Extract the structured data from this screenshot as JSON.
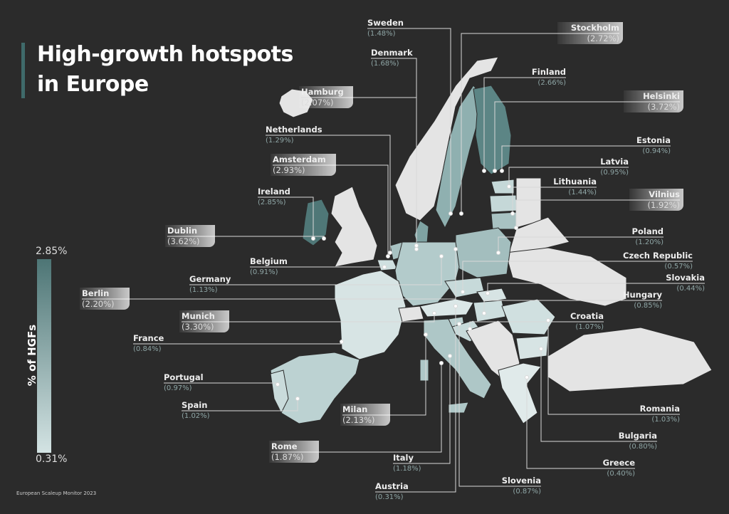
{
  "title_line1": "High-growth hotspots",
  "title_line2": "in Europe",
  "legend": {
    "title": "% of HGFs",
    "max": "2.85%",
    "min": "0.31%",
    "color_max": "#4d7575",
    "color_min": "#d3e3e3"
  },
  "source": "European Scaleup Monitor 2023",
  "labels": [
    {
      "name": "Sweden",
      "value": "(1.48%)",
      "kind": "country"
    },
    {
      "name": "Denmark",
      "value": "(1.68%)",
      "kind": "country"
    },
    {
      "name": "Hamburg",
      "value": "(2.07%)",
      "kind": "city"
    },
    {
      "name": "Netherlands",
      "value": "(1.29%)",
      "kind": "country"
    },
    {
      "name": "Amsterdam",
      "value": "(2.93%)",
      "kind": "city"
    },
    {
      "name": "Ireland",
      "value": "(2.85%)",
      "kind": "country"
    },
    {
      "name": "Dublin",
      "value": "(3.62%)",
      "kind": "city"
    },
    {
      "name": "Belgium",
      "value": "(0.91%)",
      "kind": "country"
    },
    {
      "name": "Germany",
      "value": "(1.13%)",
      "kind": "country"
    },
    {
      "name": "Berlin",
      "value": "(2.20%)",
      "kind": "city"
    },
    {
      "name": "Munich",
      "value": "(3.30%)",
      "kind": "city"
    },
    {
      "name": "France",
      "value": "(0.84%)",
      "kind": "country"
    },
    {
      "name": "Portugal",
      "value": "(0.97%)",
      "kind": "country"
    },
    {
      "name": "Spain",
      "value": "(1.02%)",
      "kind": "country"
    },
    {
      "name": "Milan",
      "value": "(2.13%)",
      "kind": "city"
    },
    {
      "name": "Rome",
      "value": "(1.87%)",
      "kind": "city"
    },
    {
      "name": "Italy",
      "value": "(1.18%)",
      "kind": "country"
    },
    {
      "name": "Austria",
      "value": "(0.31%)",
      "kind": "country"
    },
    {
      "name": "Slovenia",
      "value": "(0.87%)",
      "kind": "country"
    },
    {
      "name": "Stockholm",
      "value": "(2.72%)",
      "kind": "city"
    },
    {
      "name": "Finland",
      "value": "(2.66%)",
      "kind": "country"
    },
    {
      "name": "Helsinki",
      "value": "(3.72%)",
      "kind": "city"
    },
    {
      "name": "Estonia",
      "value": "(0.94%)",
      "kind": "country"
    },
    {
      "name": "Latvia",
      "value": "(0.95%)",
      "kind": "country"
    },
    {
      "name": "Lithuania",
      "value": "(1.44%)",
      "kind": "country"
    },
    {
      "name": "Vilnius",
      "value": "(1.92%)",
      "kind": "city"
    },
    {
      "name": "Poland",
      "value": "(1.20%)",
      "kind": "country"
    },
    {
      "name": "Czech Republic",
      "value": "(0.57%)",
      "kind": "country"
    },
    {
      "name": "Slovakia",
      "value": "(0.44%)",
      "kind": "country"
    },
    {
      "name": "Hungary",
      "value": "(0.85%)",
      "kind": "country"
    },
    {
      "name": "Croatia",
      "value": "(1.07%)",
      "kind": "country"
    },
    {
      "name": "Romania",
      "value": "(1.03%)",
      "kind": "country"
    },
    {
      "name": "Bulgaria",
      "value": "(0.80%)",
      "kind": "country"
    },
    {
      "name": "Greece",
      "value": "(0.40%)",
      "kind": "country"
    }
  ]
}
